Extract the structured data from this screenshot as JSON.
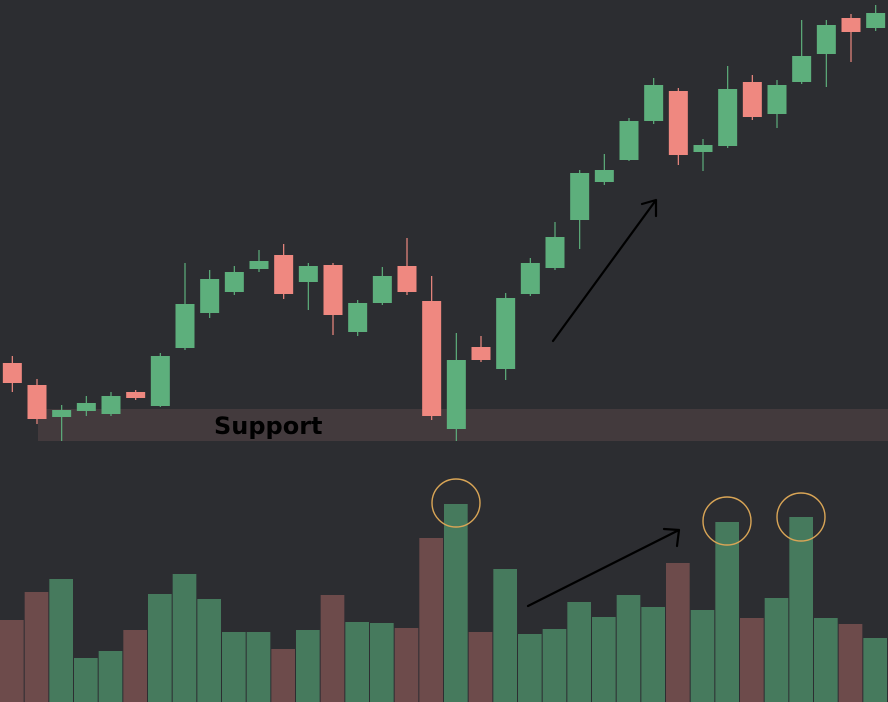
{
  "chart_data": {
    "type": "candlestick",
    "open": [
      87,
      65,
      33,
      39,
      36,
      58,
      44,
      102,
      137,
      158,
      181,
      195,
      168,
      185,
      118,
      147,
      184,
      149,
      21,
      103,
      81,
      156,
      182,
      230,
      268,
      290,
      329,
      359,
      298,
      304,
      368,
      336,
      368,
      396,
      432,
      422
    ],
    "high": [
      94,
      71,
      45,
      54,
      58,
      60,
      97,
      187,
      180,
      184,
      200,
      206,
      187,
      187,
      150,
      183,
      212,
      174,
      117,
      114,
      157,
      192,
      228,
      280,
      296,
      332,
      372,
      362,
      311,
      384,
      375,
      370,
      430,
      430,
      436,
      445
    ],
    "low": [
      58,
      26,
      9,
      34,
      34,
      50,
      43,
      100,
      132,
      155,
      178,
      151,
      140,
      115,
      114,
      145,
      155,
      30,
      9,
      88,
      70,
      154,
      180,
      201,
      265,
      289,
      326,
      285,
      279,
      302,
      330,
      322,
      366,
      363,
      388,
      419
    ],
    "close": [
      67,
      31,
      40,
      47,
      54,
      52,
      94,
      146,
      171,
      178,
      189,
      156,
      184,
      135,
      147,
      174,
      158,
      34,
      90,
      90,
      152,
      187,
      213,
      277,
      280,
      329,
      365,
      295,
      305,
      361,
      333,
      365,
      394,
      425,
      418,
      437
    ],
    "volume": [
      82,
      110,
      123,
      44,
      51,
      72,
      108,
      128,
      103,
      70,
      70,
      53,
      72,
      107,
      80,
      79,
      74,
      164,
      198,
      70,
      133,
      68,
      73,
      100,
      85,
      107,
      95,
      139,
      92,
      180,
      84,
      104,
      185,
      84,
      78,
      64
    ],
    "ylim": [
      0,
      450
    ],
    "volume_ylim": [
      0,
      250
    ],
    "up_color": "#5daf7c",
    "down_color": "#ef8880",
    "volume_up_color": "#467a5d",
    "volume_down_color": "#6d4b4b",
    "support": {
      "label": "Support",
      "range": [
        9,
        41
      ],
      "color": "#433a3d"
    }
  }
}
